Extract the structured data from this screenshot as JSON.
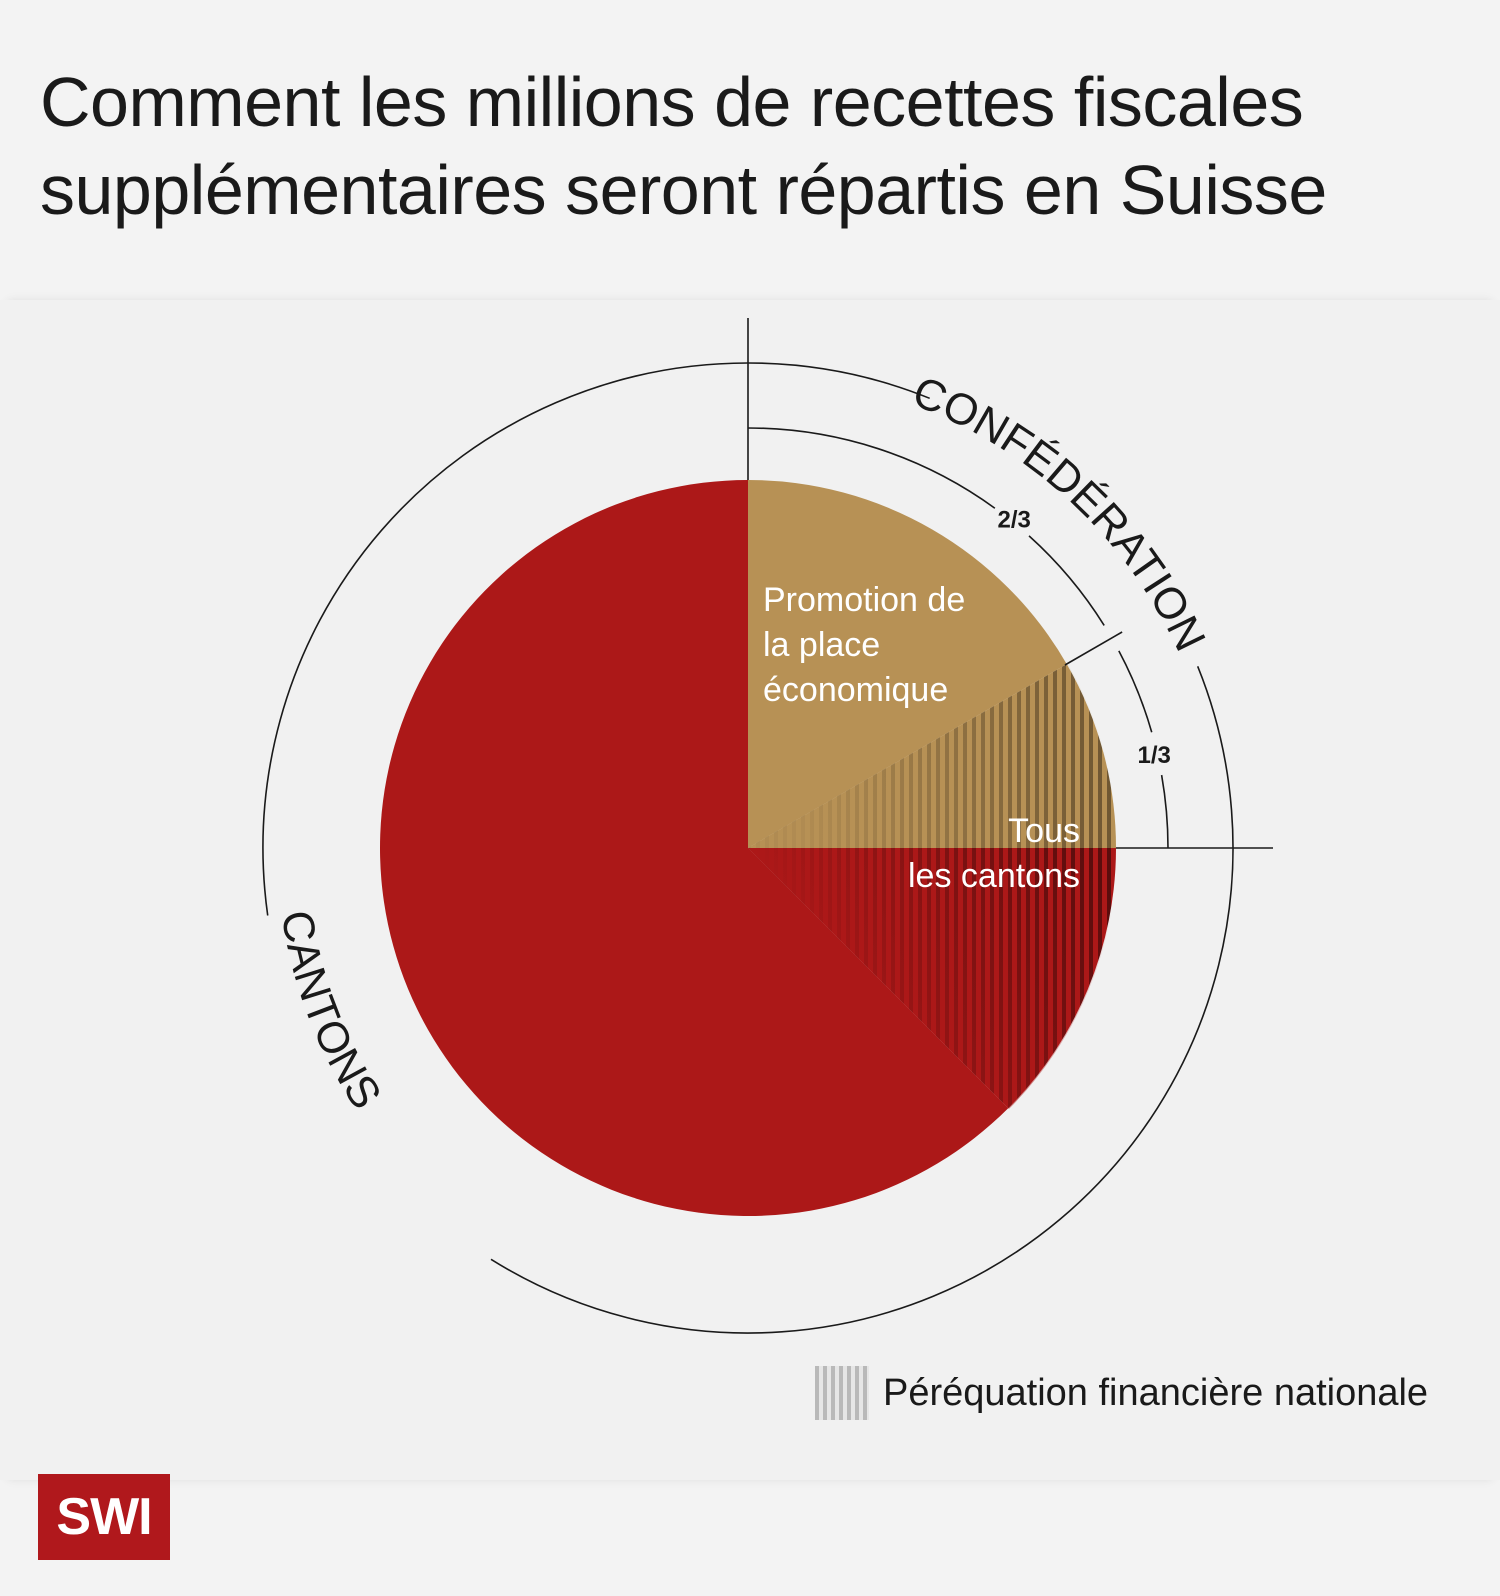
{
  "title": "Comment les millions de recettes fiscales supplémentaires seront répartis en Suisse",
  "chart_data": {
    "type": "pie",
    "slices": [
      {
        "label": "Promotion de la place économique",
        "fraction": 0.1667,
        "color": "#b79155",
        "group": "CONFÉDÉRATION"
      },
      {
        "label": "Tous les cantons",
        "fraction": 0.0833,
        "color": "#b79155",
        "group": "CONFÉDÉRATION",
        "hatched": true
      },
      {
        "label": "Tous les cantons",
        "fraction": 0.125,
        "color": "#ac1818",
        "group": "CANTONS",
        "hatched": true
      },
      {
        "label": "",
        "fraction": 0.625,
        "color": "#ac1818",
        "group": "CANTONS"
      }
    ],
    "groups": [
      {
        "name": "CONFÉDÉRATION",
        "fraction": 0.25
      },
      {
        "name": "CANTONS",
        "fraction": 0.75
      }
    ],
    "confederation_split": [
      "2/3",
      "1/3"
    ],
    "inner_labels": {
      "promotion": [
        "Promotion de",
        "la place",
        "économique"
      ],
      "cantons": [
        "Tous",
        "les cantons"
      ]
    },
    "legend": [
      {
        "label": "Péréquation financière nationale",
        "pattern": "vertical-stripes"
      }
    ]
  },
  "logo": "SWI"
}
